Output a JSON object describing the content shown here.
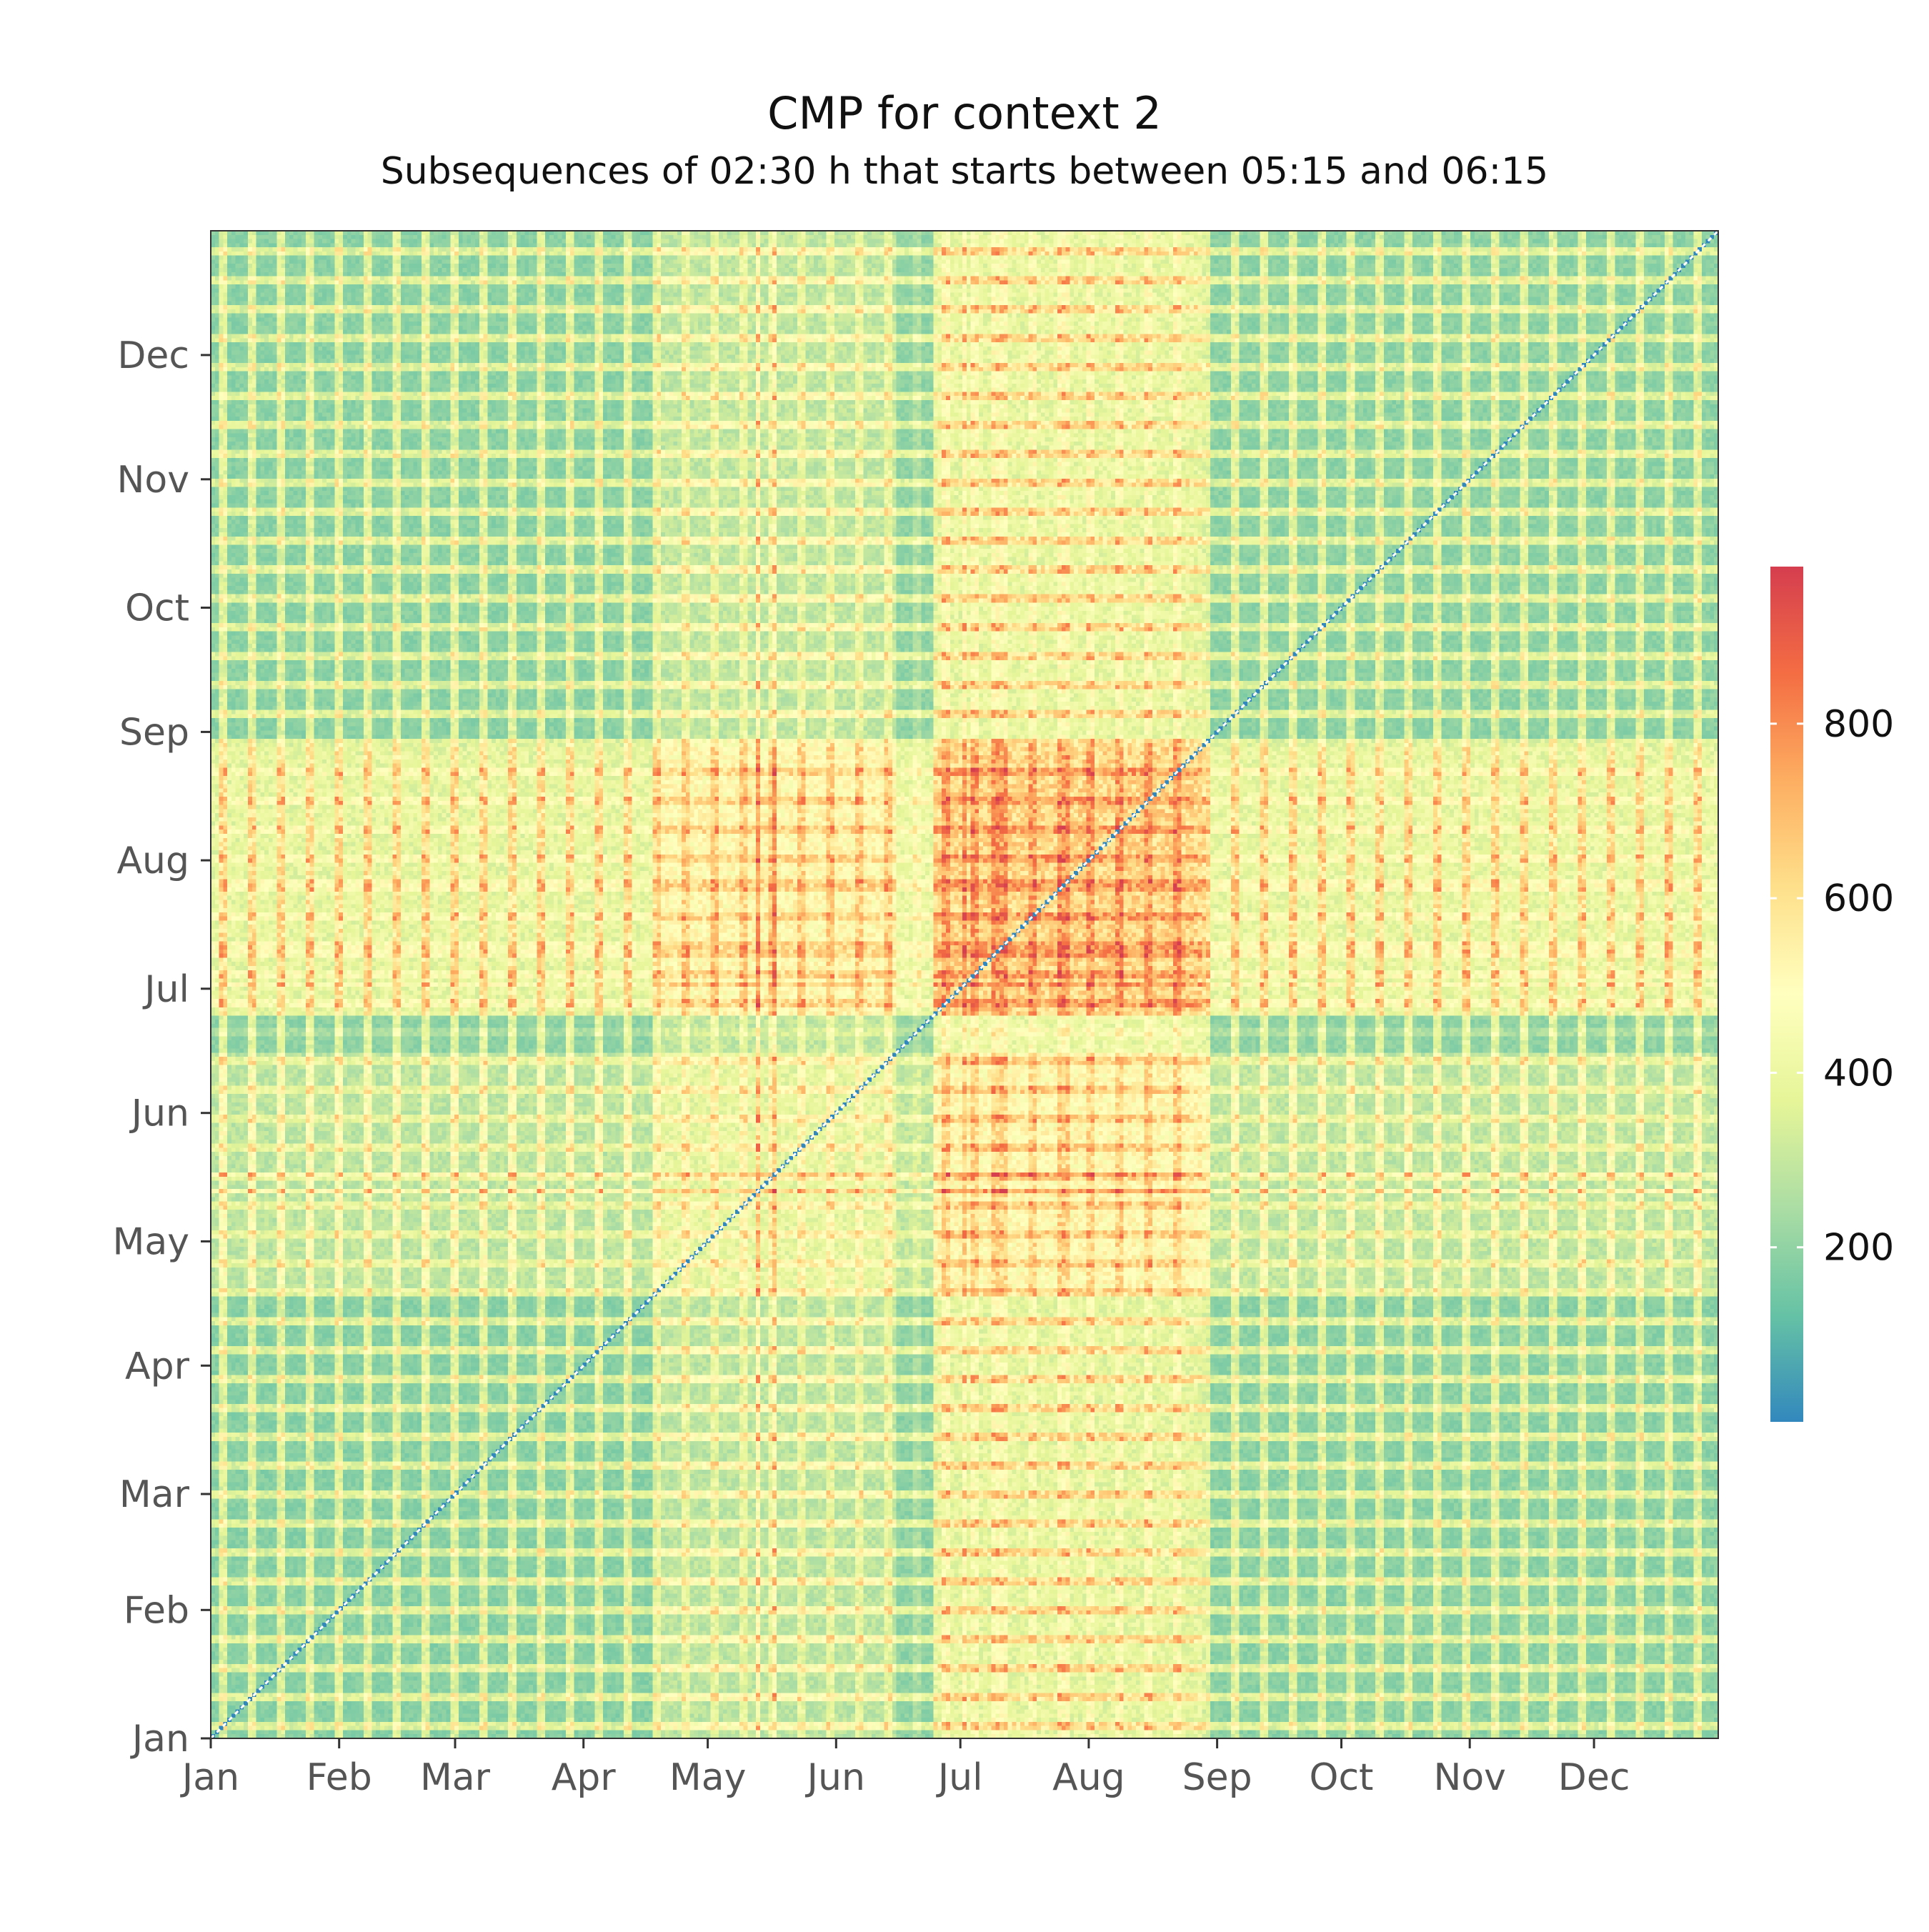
{
  "chart_data": {
    "type": "heatmap",
    "title": "CMP for context 2",
    "subtitle": "Subsequences of 02:30 h that starts between 05:15 and 06:15",
    "x_tick_labels": [
      "Jan",
      "Feb",
      "Mar",
      "Apr",
      "May",
      "Jun",
      "Jul",
      "Aug",
      "Sep",
      "Oct",
      "Nov",
      "Dec"
    ],
    "y_tick_labels": [
      "Jan",
      "Feb",
      "Mar",
      "Apr",
      "May",
      "Jun",
      "Jul",
      "Aug",
      "Sep",
      "Oct",
      "Nov",
      "Dec"
    ],
    "month_start_day": [
      1,
      32,
      60,
      91,
      121,
      152,
      182,
      213,
      244,
      274,
      305,
      335
    ],
    "days": 365,
    "xlim": [
      1,
      365
    ],
    "ylim": [
      1,
      365
    ],
    "diagonal_value": 0,
    "colorbar": {
      "min": 0,
      "max": 980,
      "ticks": [
        200,
        400,
        600,
        800
      ],
      "tick_labels": [
        "200",
        "400",
        "600",
        "800"
      ],
      "palette": [
        "#3288bd",
        "#66c2a5",
        "#abdda4",
        "#e6f598",
        "#ffffbf",
        "#fee08b",
        "#fdae61",
        "#f46d43",
        "#d53e4f"
      ]
    },
    "day_profile": [
      {
        "day_range": [
          1,
          108
        ],
        "pattern": "weekly-alternating",
        "weekday_level": 180,
        "weekend_level": 560
      },
      {
        "day_range": [
          109,
          166
        ],
        "pattern": "mixed-high",
        "weekday_level": 380,
        "weekend_level": 640
      },
      {
        "day_range": [
          167,
          175
        ],
        "pattern": "low",
        "weekday_level": 200,
        "weekend_level": 300
      },
      {
        "day_range": [
          176,
          240
        ],
        "pattern": "summer-high",
        "weekday_level": 620,
        "weekend_level": 860
      },
      {
        "day_range": [
          241,
          365
        ],
        "pattern": "weekly-alternating",
        "weekday_level": 190,
        "weekend_level": 560
      }
    ],
    "peak_days": [
      133,
      137,
      183,
      190,
      191,
      206,
      207,
      208
    ],
    "grid": false,
    "legend_position": "right"
  }
}
